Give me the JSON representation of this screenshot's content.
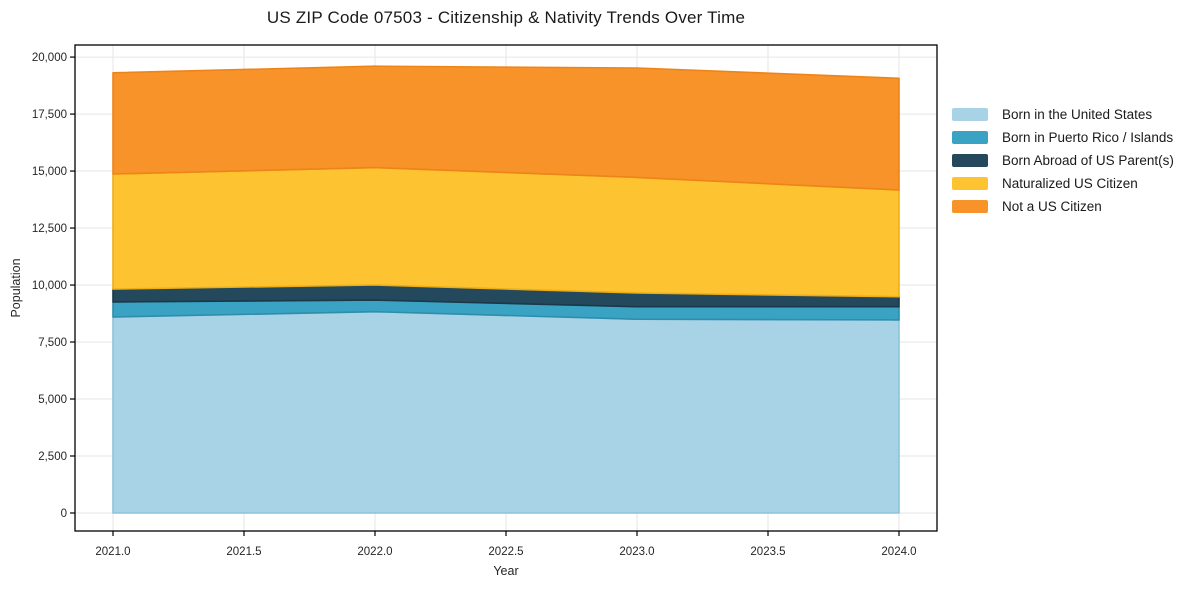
{
  "chart_data": {
    "type": "area",
    "stacked": true,
    "title": "US ZIP Code 07503 - Citizenship & Nativity Trends Over Time",
    "xlabel": "Year",
    "ylabel": "Population",
    "x": [
      2021,
      2022,
      2023,
      2024
    ],
    "series": [
      {
        "name": "Born in the United States",
        "color": "#a8d3e6",
        "edge_color": "#8ec2da",
        "values": [
          8600,
          8830,
          8500,
          8470
        ]
      },
      {
        "name": "Born in Puerto Rico / Islands",
        "color": "#3aa3c3",
        "edge_color": "#2d8dab",
        "values": [
          660,
          510,
          550,
          580
        ]
      },
      {
        "name": "Born Abroad of US Parent(s)",
        "color": "#24495c",
        "edge_color": "#1a3848",
        "values": [
          560,
          660,
          600,
          440
        ]
      },
      {
        "name": "Naturalized US Citizen",
        "color": "#fdc330",
        "edge_color": "#eead14",
        "values": [
          5050,
          5150,
          5070,
          4680
        ]
      },
      {
        "name": "Not a US Citizen",
        "color": "#f8932a",
        "edge_color": "#ee8418",
        "values": [
          4440,
          4450,
          4800,
          4900
        ]
      }
    ],
    "xlim": [
      2020.855,
      2024.145
    ],
    "ylim": [
      -790,
      20530
    ],
    "xticks": [
      2021.0,
      2021.5,
      2022.0,
      2022.5,
      2023.0,
      2023.5,
      2024.0
    ],
    "xtick_labels": [
      "2021.0",
      "2021.5",
      "2022.0",
      "2022.5",
      "2023.0",
      "2023.5",
      "2024.0"
    ],
    "yticks": [
      0,
      2500,
      5000,
      7500,
      10000,
      12500,
      15000,
      17500,
      20000
    ],
    "ytick_labels": [
      "0",
      "2,500",
      "5,000",
      "7,500",
      "10,000",
      "12,500",
      "15,000",
      "17,500",
      "20,000"
    ],
    "grid": true,
    "grid_color": "#e6e6e6",
    "frame_color": "#000000",
    "text_color": "#262626",
    "legend_position": "outside-right"
  }
}
